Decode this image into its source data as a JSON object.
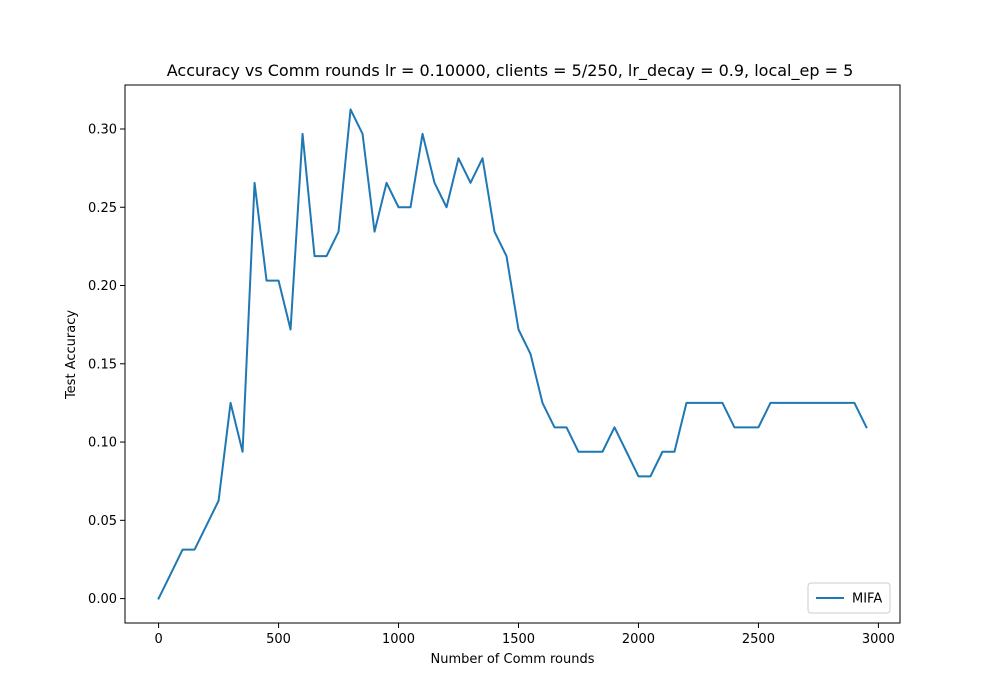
{
  "chart_data": {
    "type": "line",
    "title": "Accuracy vs Comm rounds lr = 0.10000, clients = 5/250, lr_decay = 0.9, local_ep = 5",
    "xlabel": "Number of Comm rounds",
    "ylabel": "Test Accuracy",
    "xlim": [
      -140,
      3090
    ],
    "ylim": [
      -0.0156,
      0.3281
    ],
    "xticks": [
      0,
      500,
      1000,
      1500,
      2000,
      2500,
      3000
    ],
    "xtick_labels": [
      "0",
      "500",
      "1000",
      "1500",
      "2000",
      "2500",
      "3000"
    ],
    "yticks": [
      0.0,
      0.05,
      0.1,
      0.15,
      0.2,
      0.25,
      0.3
    ],
    "ytick_labels": [
      "0.00",
      "0.05",
      "0.10",
      "0.15",
      "0.20",
      "0.25",
      "0.30"
    ],
    "grid": false,
    "legend_position": "lower-right",
    "colors": {
      "series": "#1f77b4",
      "axes": "#000000",
      "legend_border": "#cccccc"
    },
    "x": [
      0,
      50,
      100,
      150,
      200,
      250,
      300,
      350,
      400,
      450,
      500,
      550,
      600,
      650,
      700,
      750,
      800,
      850,
      900,
      950,
      1000,
      1050,
      1100,
      1150,
      1200,
      1250,
      1300,
      1350,
      1400,
      1450,
      1500,
      1550,
      1600,
      1650,
      1700,
      1750,
      1800,
      1850,
      1900,
      1950,
      2000,
      2050,
      2100,
      2150,
      2200,
      2250,
      2300,
      2350,
      2400,
      2450,
      2500,
      2550,
      2600,
      2650,
      2700,
      2750,
      2800,
      2850,
      2900,
      2950
    ],
    "series": [
      {
        "name": "MIFA",
        "values": [
          0.0,
          0.0156,
          0.0313,
          0.0313,
          0.0469,
          0.0625,
          0.125,
          0.0938,
          0.2656,
          0.2031,
          0.2031,
          0.1719,
          0.2969,
          0.2188,
          0.2188,
          0.2344,
          0.3125,
          0.2969,
          0.2344,
          0.2656,
          0.25,
          0.25,
          0.2969,
          0.2656,
          0.25,
          0.2813,
          0.2656,
          0.2813,
          0.2344,
          0.2188,
          0.1719,
          0.1563,
          0.125,
          0.1094,
          0.1094,
          0.0938,
          0.0938,
          0.0938,
          0.1094,
          0.0938,
          0.0781,
          0.0781,
          0.0938,
          0.0938,
          0.125,
          0.125,
          0.125,
          0.125,
          0.1094,
          0.1094,
          0.1094,
          0.125,
          0.125,
          0.125,
          0.125,
          0.125,
          0.125,
          0.125,
          0.125,
          0.1094
        ]
      }
    ]
  }
}
